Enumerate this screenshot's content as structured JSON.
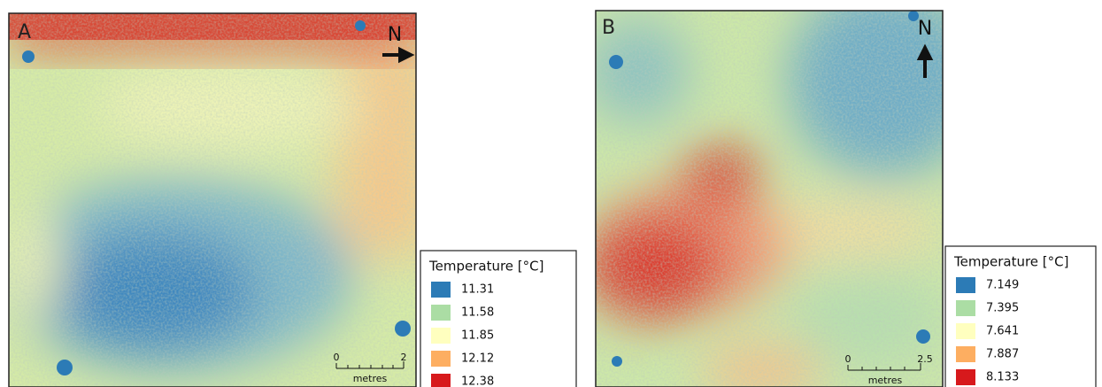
{
  "panels": [
    {
      "label": "A",
      "north": "N",
      "legend": {
        "title": "Temperature [°C]",
        "entries": [
          {
            "label": "11.31",
            "color": "#2c7bb6"
          },
          {
            "label": "11.58",
            "color": "#abdda4"
          },
          {
            "label": "11.85",
            "color": "#ffffbf"
          },
          {
            "label": "12.12",
            "color": "#fdae61"
          },
          {
            "label": "12.38",
            "color": "#d7191c"
          }
        ]
      },
      "scale": {
        "ticks": [
          "0",
          "2"
        ],
        "unit": "metres"
      }
    },
    {
      "label": "B",
      "north": "N",
      "legend": {
        "title": "Temperature [°C]",
        "entries": [
          {
            "label": "7.149",
            "color": "#2c7bb6"
          },
          {
            "label": "7.395",
            "color": "#abdda4"
          },
          {
            "label": "7.641",
            "color": "#ffffbf"
          },
          {
            "label": "7.887",
            "color": "#fdae61"
          },
          {
            "label": "8.133",
            "color": "#d7191c"
          }
        ]
      },
      "scale": {
        "ticks": [
          "0",
          "2.5"
        ],
        "unit": "metres"
      }
    }
  ]
}
